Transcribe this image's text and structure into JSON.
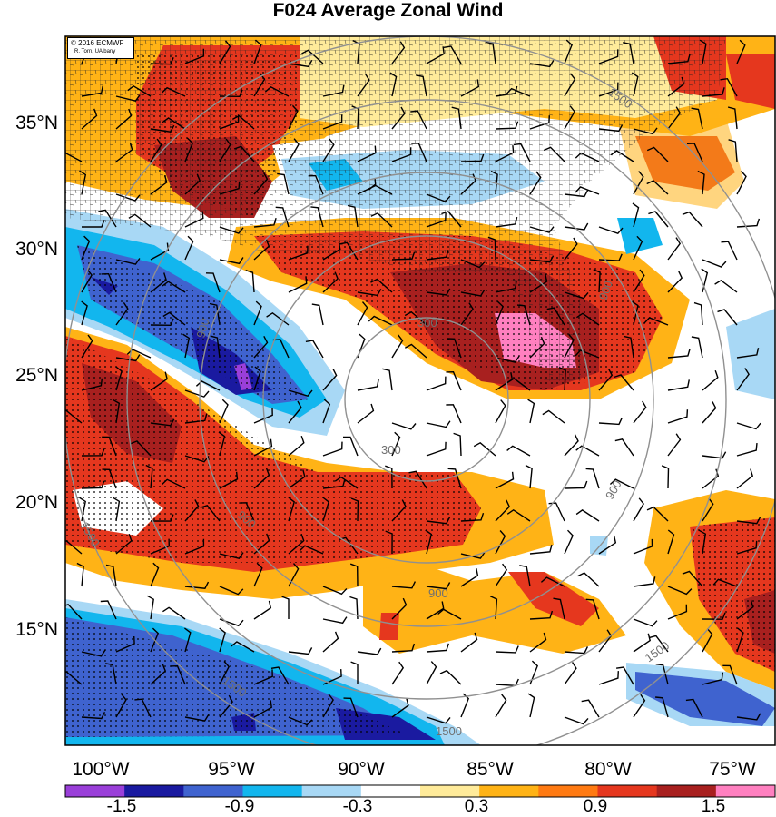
{
  "title": "F024 Average Zonal Wind",
  "credit": {
    "line1": "© 2016 ECMWF",
    "line2": "R. Torn, UAlbany"
  },
  "lat_labels": [
    "35°N",
    "30°N",
    "25°N",
    "20°N",
    "15°N"
  ],
  "lon_labels": [
    "100°W",
    "95°W",
    "90°W",
    "85°W",
    "80°W",
    "75°W"
  ],
  "colorbar": {
    "labels": [
      "-1.5",
      "-0.9",
      "-0.3",
      "0.3",
      "0.9",
      "1.5"
    ],
    "colors": [
      "#9a3fd9",
      "#1a1aa0",
      "#3f63cf",
      "#12b6ee",
      "#a8d8f5",
      "#ffffff",
      "#ffeb9a",
      "#ffb316",
      "#ff7a12",
      "#e5371e",
      "#a8201f",
      "#ff80c0"
    ]
  },
  "contour_labels": [
    "300",
    "300",
    "900",
    "900",
    "900",
    "900",
    "1500",
    "1500",
    "1500",
    "1500",
    "1500",
    "900"
  ],
  "field_colors": {
    "strong_neg": "#1a1aa0",
    "mid_neg": "#3f63cf",
    "light_neg": "#12b6ee",
    "pale_neg": "#a8d8f5",
    "pale_pos": "#ffeb9a",
    "light_pos": "#ffb316",
    "mid_pos": "#ff7a12",
    "strong_pos": "#e5371e",
    "darker_pos": "#a8201f",
    "max_pos": "#ff80c0"
  }
}
